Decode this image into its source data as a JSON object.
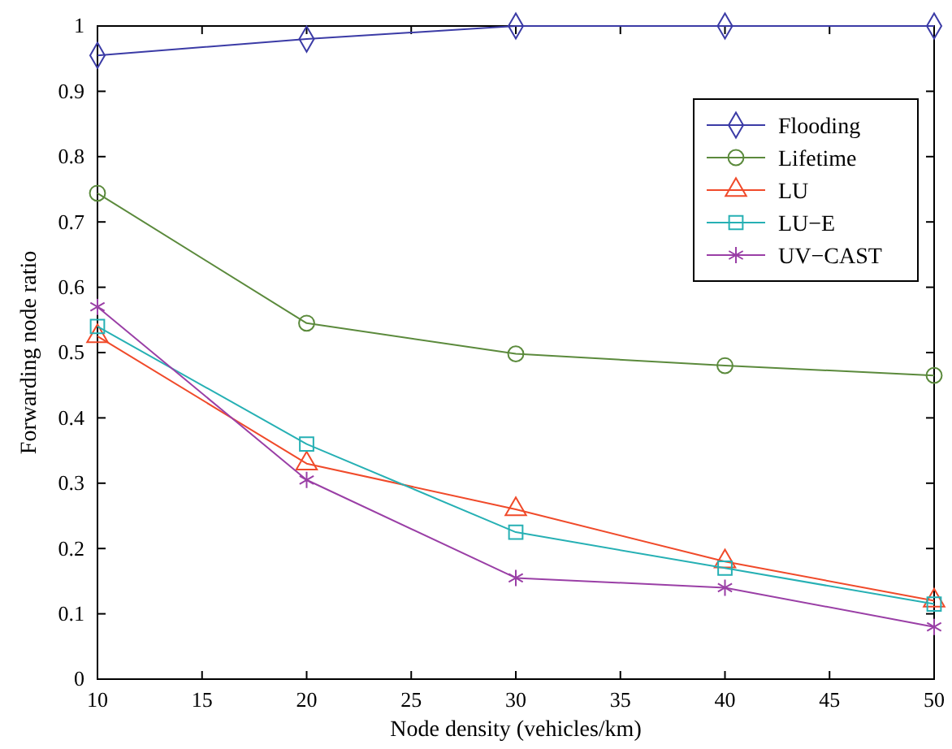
{
  "chart_data": {
    "type": "line",
    "xlabel": "Node density (vehicles/km)",
    "ylabel": "Forwarding node ratio",
    "x": [
      10,
      20,
      30,
      40,
      50
    ],
    "xlim": [
      10,
      50
    ],
    "xticks": [
      10,
      15,
      20,
      25,
      30,
      35,
      40,
      45,
      50
    ],
    "ylim": [
      0,
      1
    ],
    "yticks": [
      0,
      0.1,
      0.2,
      0.3,
      0.4,
      0.5,
      0.6,
      0.7,
      0.8,
      0.9,
      1
    ],
    "legend": "top right",
    "grid": false,
    "line_style": "solid",
    "series": [
      {
        "name": "Flooding",
        "color": "#3b3ba6",
        "marker": "diamond",
        "values": [
          0.955,
          0.98,
          1,
          1,
          1
        ]
      },
      {
        "name": "Lifetime",
        "color": "#5b8a3c",
        "marker": "circle",
        "values": [
          0.744,
          0.545,
          0.498,
          0.48,
          0.465
        ]
      },
      {
        "name": "LU",
        "color": "#f04a2a",
        "marker": "triangle",
        "values": [
          0.525,
          0.33,
          0.26,
          0.18,
          0.12
        ]
      },
      {
        "name": "LU−E",
        "color": "#26b0b4",
        "marker": "square",
        "values": [
          0.54,
          0.36,
          0.225,
          0.17,
          0.115
        ]
      },
      {
        "name": "UV−CAST",
        "color": "#9a3fa6",
        "marker": "cross",
        "values": [
          0.57,
          0.305,
          0.155,
          0.14,
          0.08
        ]
      }
    ]
  }
}
